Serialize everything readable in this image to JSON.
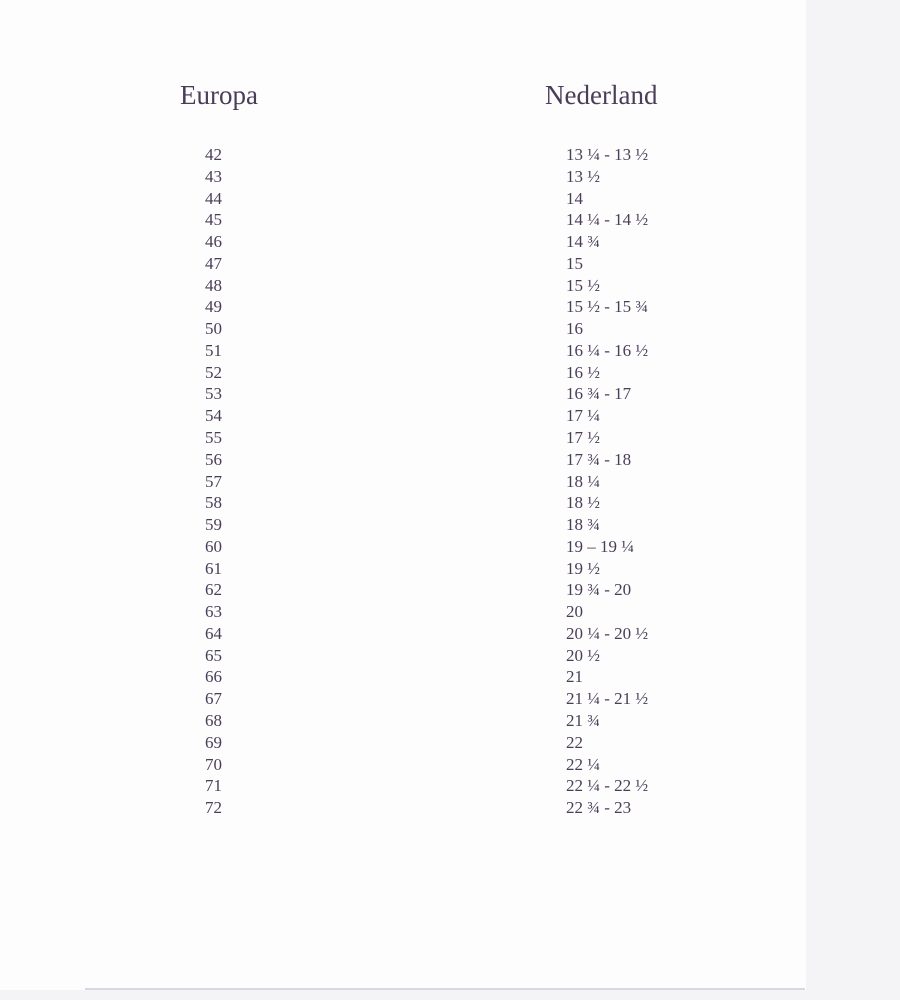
{
  "headers": {
    "europa": "Europa",
    "nederland": "Nederland"
  },
  "rows": [
    {
      "eu": "42",
      "nl": "13 ¼ - 13 ½"
    },
    {
      "eu": "43",
      "nl": "13 ½"
    },
    {
      "eu": "44",
      "nl": "14"
    },
    {
      "eu": "45",
      "nl": "14 ¼ - 14 ½"
    },
    {
      "eu": "46",
      "nl": "14 ¾"
    },
    {
      "eu": "47",
      "nl": "15"
    },
    {
      "eu": "48",
      "nl": "15 ½"
    },
    {
      "eu": "49",
      "nl": "15 ½ - 15 ¾"
    },
    {
      "eu": "50",
      "nl": "16"
    },
    {
      "eu": "51",
      "nl": "16 ¼ - 16 ½"
    },
    {
      "eu": "52",
      "nl": "16 ½"
    },
    {
      "eu": "53",
      "nl": "16 ¾ - 17"
    },
    {
      "eu": "54",
      "nl": "17 ¼"
    },
    {
      "eu": "55",
      "nl": "17 ½"
    },
    {
      "eu": "56",
      "nl": "17 ¾ - 18"
    },
    {
      "eu": "57",
      "nl": "18 ¼"
    },
    {
      "eu": "58",
      "nl": "18 ½"
    },
    {
      "eu": "59",
      "nl": "18 ¾"
    },
    {
      "eu": "60",
      "nl": "19 – 19 ¼"
    },
    {
      "eu": "61",
      "nl": "19 ½"
    },
    {
      "eu": "62",
      "nl": "19 ¾ - 20"
    },
    {
      "eu": "63",
      "nl": "20"
    },
    {
      "eu": "64",
      "nl": "20 ¼ - 20 ½"
    },
    {
      "eu": "65",
      "nl": "20 ½"
    },
    {
      "eu": "66",
      "nl": "21"
    },
    {
      "eu": "67",
      "nl": "21 ¼ - 21 ½"
    },
    {
      "eu": "68",
      "nl": "21 ¾"
    },
    {
      "eu": "69",
      "nl": "22"
    },
    {
      "eu": "70",
      "nl": "22 ¼"
    },
    {
      "eu": "71",
      "nl": "22 ¼ - 22 ½"
    },
    {
      "eu": "72",
      "nl": "22 ¾ - 23"
    }
  ]
}
